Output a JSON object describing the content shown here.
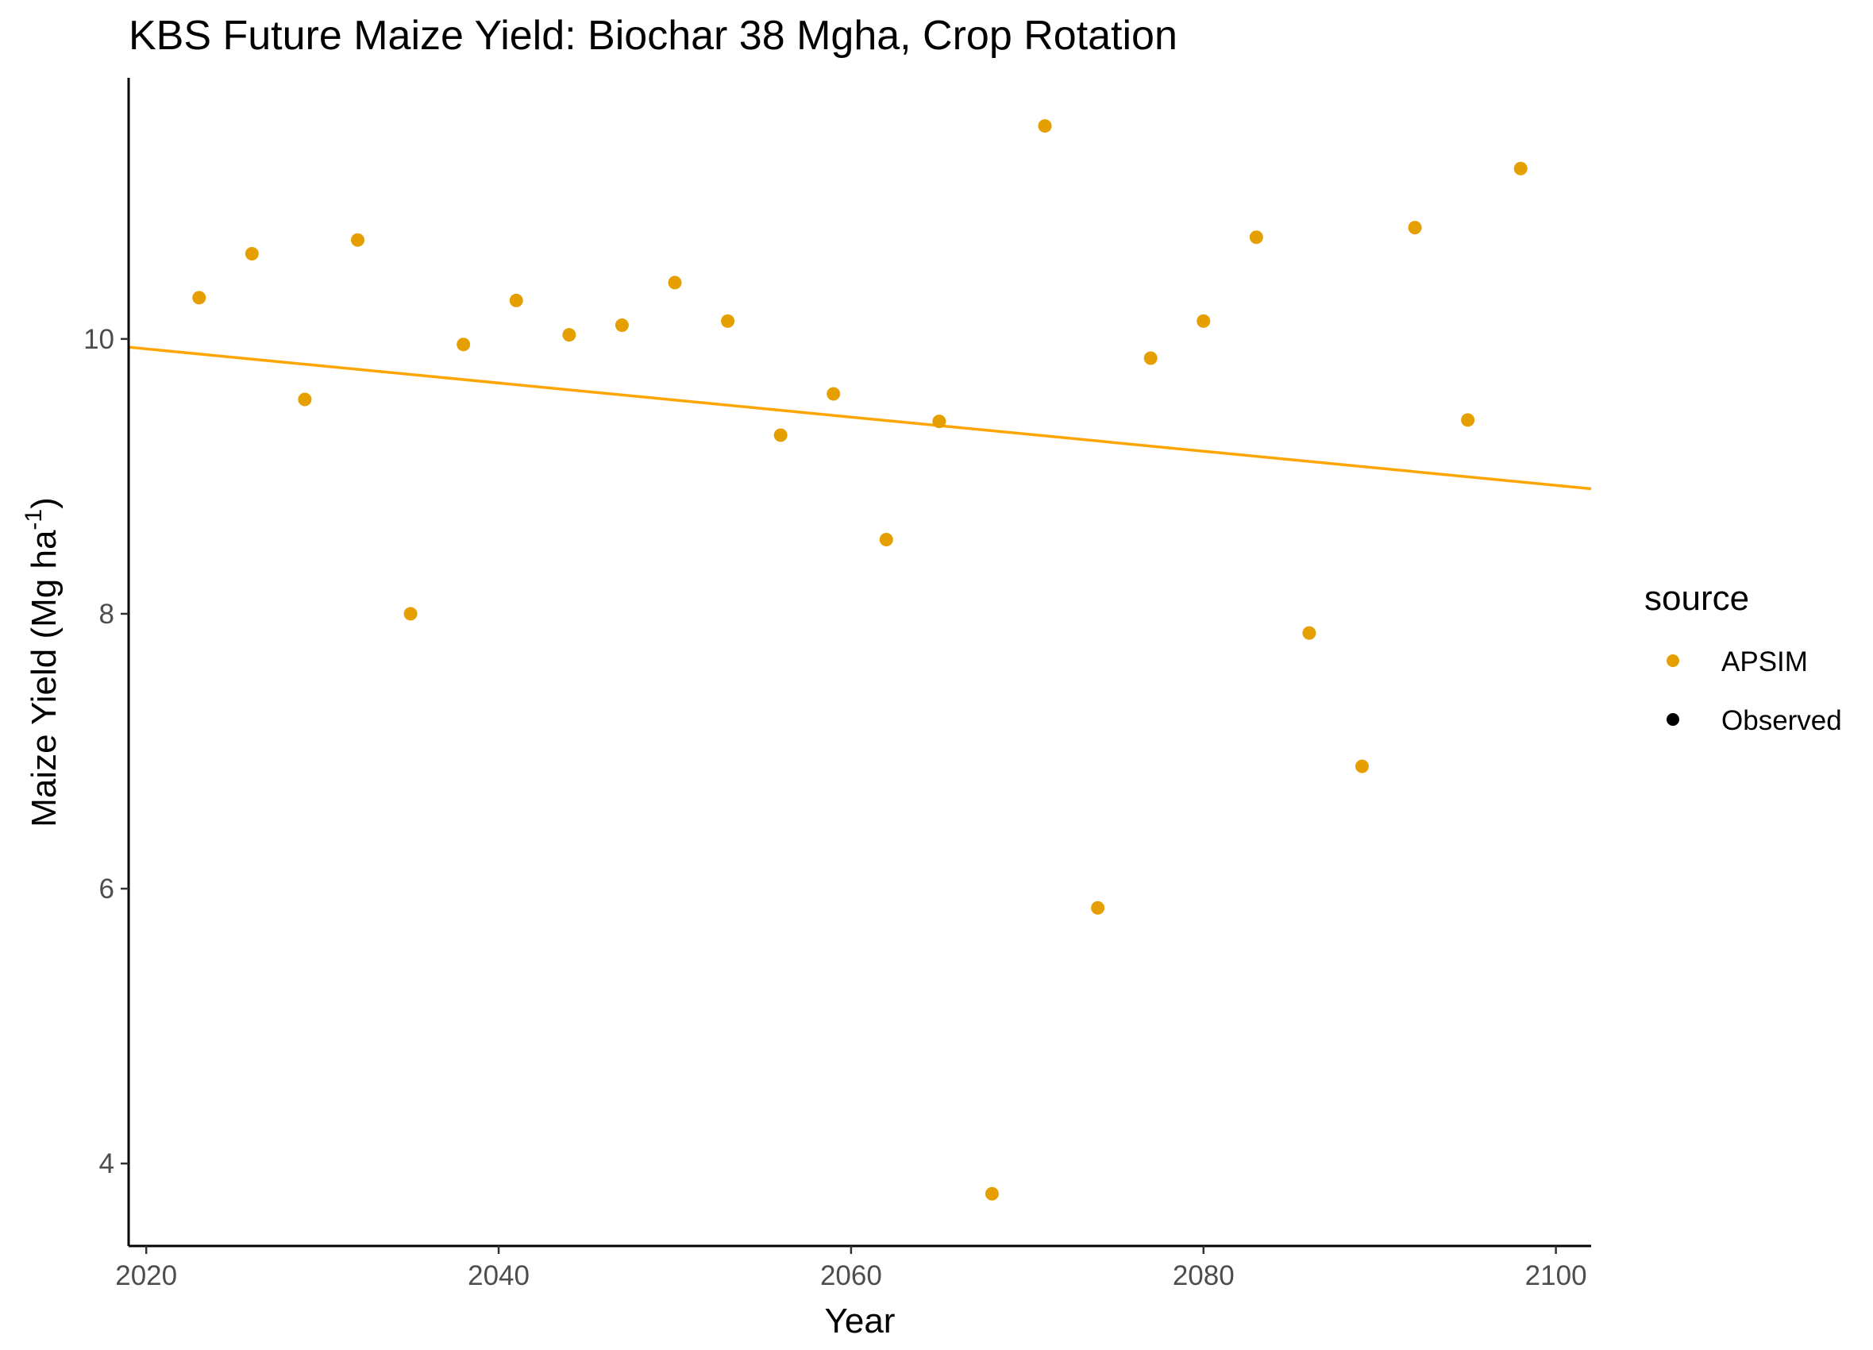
{
  "chart_data": {
    "type": "scatter",
    "title": "KBS Future Maize Yield:  Biochar 38 Mgha, Crop Rotation",
    "xlabel": "Year",
    "ylabel_main": "Maize Yield (Mg ha",
    "ylabel_sup": "-1",
    "ylabel_close": ")",
    "xlim": [
      2019,
      2102
    ],
    "ylim": [
      3.4,
      11.9
    ],
    "x_ticks": [
      2020,
      2040,
      2060,
      2080,
      2100
    ],
    "y_ticks": [
      4,
      6,
      8,
      10
    ],
    "grid": false,
    "legend": {
      "title": "source",
      "position": "right",
      "entries": [
        {
          "label": "APSIM",
          "color": "#E69F00"
        },
        {
          "label": "Observed",
          "color": "#000000"
        }
      ]
    },
    "series": [
      {
        "name": "APSIM",
        "color": "#E69F00",
        "x": [
          2023,
          2026,
          2029,
          2032,
          2035,
          2038,
          2041,
          2044,
          2047,
          2050,
          2053,
          2056,
          2059,
          2062,
          2065,
          2068,
          2071,
          2074,
          2077,
          2080,
          2083,
          2086,
          2089,
          2092,
          2095,
          2098
        ],
        "y": [
          10.3,
          10.62,
          9.56,
          10.72,
          8.0,
          9.96,
          10.28,
          10.03,
          10.1,
          10.41,
          10.13,
          9.3,
          9.6,
          8.54,
          9.4,
          3.78,
          11.55,
          5.86,
          9.86,
          10.13,
          10.74,
          7.86,
          6.89,
          10.81,
          9.41,
          11.24
        ]
      }
    ],
    "trendline": {
      "color": "#FFA500",
      "x": [
        2019,
        2102
      ],
      "y": [
        9.94,
        8.91
      ]
    }
  }
}
